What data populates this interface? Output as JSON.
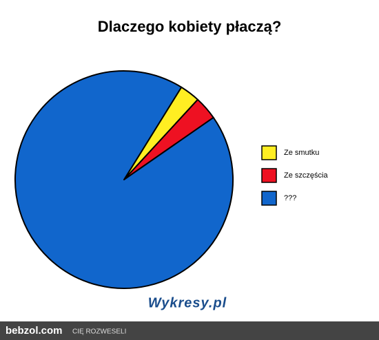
{
  "chart_data": {
    "type": "pie",
    "title": "Dlaczego kobiety płaczą?",
    "categories": [
      "Ze smutku",
      "Ze szczęścia",
      "???"
    ],
    "values": [
      3,
      3.5,
      93.5
    ],
    "colors": [
      "#ffee22",
      "#ee1122",
      "#1166cc"
    ],
    "legend": "right"
  },
  "watermark": "Wykresy.pl",
  "footer": {
    "site": "bebzol.com",
    "slogan": "CIĘ ROZWESELI"
  }
}
